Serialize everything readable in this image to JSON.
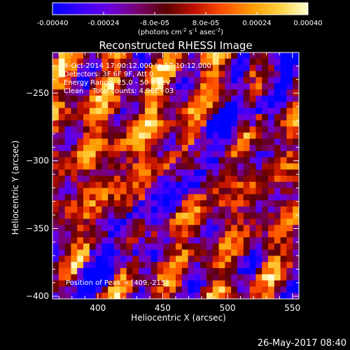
{
  "colorbar": {
    "tick_labels": [
      "-0.00040",
      "-0.00024",
      "-8.0e-05",
      "8.0e-05",
      "0.00024",
      "0.00040"
    ],
    "tick_values": [
      -0.0004,
      -0.00024,
      -8e-05,
      8e-05,
      0.00024,
      0.0004
    ],
    "range": [
      -0.0004,
      0.0004
    ],
    "units_prefix": "(photons cm",
    "units_exp1": "-2",
    "units_mid": " s",
    "units_exp2": "-1",
    "units_mid2": " asec",
    "units_exp3": "-2",
    "units_suffix": ")",
    "colormap": [
      "#0000ff",
      "#3a00ff",
      "#6a00e0",
      "#7a0070",
      "#5a0000",
      "#c01000",
      "#ff5000",
      "#ff9a00",
      "#ffd040",
      "#ffffd0"
    ]
  },
  "chart_data": {
    "type": "heatmap",
    "title": "Reconstructed RHESSI Image",
    "xlabel": "Heliocentric X (arcsec)",
    "ylabel": "Heliocentric Y (arcsec)",
    "xlim": [
      365,
      555
    ],
    "ylim": [
      -402,
      -220
    ],
    "x_ticks": [
      400,
      450,
      500,
      550
    ],
    "y_ticks": [
      -400,
      -350,
      -300,
      -250
    ],
    "x_tick_labels": [
      "400",
      "450",
      "500",
      "550"
    ],
    "y_tick_labels": [
      "−400",
      "−350",
      "−300",
      "−250"
    ],
    "pixel_size_arcsec": 5,
    "description_lines": [
      "  4-Oct-2014 17:00:12.000 to 17:10:12.000",
      "Detectors: 3F 6F 9F, Att 0",
      "Energy Range: 25.0 - 50.0 keV",
      "Clean    Total counts: 4.96E+03"
    ],
    "peak_label": "Position of Peak = [409,-215]",
    "peak_position": [
      409,
      -215
    ]
  },
  "footer": {
    "timestamp": "26-May-2017 08:40"
  }
}
